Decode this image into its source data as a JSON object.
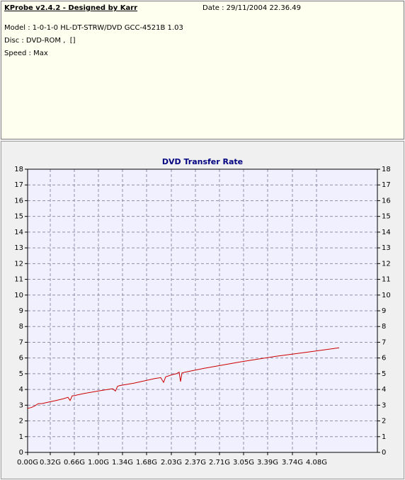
{
  "header": {
    "title": "KProbe v2.4.2 - Designed by Karr",
    "date": "Date : 29/11/2004 22.36.49",
    "model": "Model : 1-0-1-0 HL-DT-STRW/DVD GCC-4521B 1.03",
    "disc": "Disc : DVD-ROM ,  []",
    "speed": "Speed : Max"
  },
  "chart_data": {
    "type": "line",
    "title": "DVD Transfer Rate",
    "color": "#cc0000",
    "grid": true,
    "x": [
      0,
      0.05,
      0.1,
      0.15,
      0.2,
      0.3,
      0.4,
      0.5,
      0.57,
      0.6,
      0.63,
      0.66,
      0.7,
      0.8,
      1.0,
      1.2,
      1.24,
      1.27,
      1.3,
      1.5,
      1.8,
      1.88,
      1.92,
      1.95,
      2.05,
      2.1,
      2.14,
      2.16,
      2.18,
      2.22,
      2.5,
      3.0,
      3.5,
      4.0,
      4.4
    ],
    "values": [
      2.8,
      2.85,
      2.95,
      3.1,
      3.1,
      3.2,
      3.3,
      3.4,
      3.5,
      3.3,
      3.6,
      3.6,
      3.65,
      3.75,
      3.9,
      4.05,
      3.9,
      4.2,
      4.25,
      4.4,
      4.7,
      4.75,
      4.45,
      4.8,
      4.95,
      5.0,
      5.1,
      4.5,
      5.05,
      5.1,
      5.35,
      5.75,
      6.1,
      6.4,
      6.65
    ],
    "xlim": [
      0,
      4.94
    ],
    "ylim": [
      0,
      18
    ],
    "xticks": [
      {
        "value": 0,
        "label": "0.00G"
      },
      {
        "value": 0.32,
        "label": "0.32G"
      },
      {
        "value": 0.66,
        "label": "0.66G"
      },
      {
        "value": 1.0,
        "label": "1.00G"
      },
      {
        "value": 1.34,
        "label": "1.34G"
      },
      {
        "value": 1.68,
        "label": "1.68G"
      },
      {
        "value": 2.03,
        "label": "2.03G"
      },
      {
        "value": 2.37,
        "label": "2.37G"
      },
      {
        "value": 2.71,
        "label": "2.71G"
      },
      {
        "value": 3.05,
        "label": "3.05G"
      },
      {
        "value": 3.39,
        "label": "3.39G"
      },
      {
        "value": 3.74,
        "label": "3.74G"
      },
      {
        "value": 4.08,
        "label": "4.08G"
      }
    ],
    "yticks": [
      0,
      1,
      2,
      3,
      4,
      5,
      6,
      7,
      8,
      9,
      10,
      11,
      12,
      13,
      14,
      15,
      16,
      17,
      18
    ]
  }
}
